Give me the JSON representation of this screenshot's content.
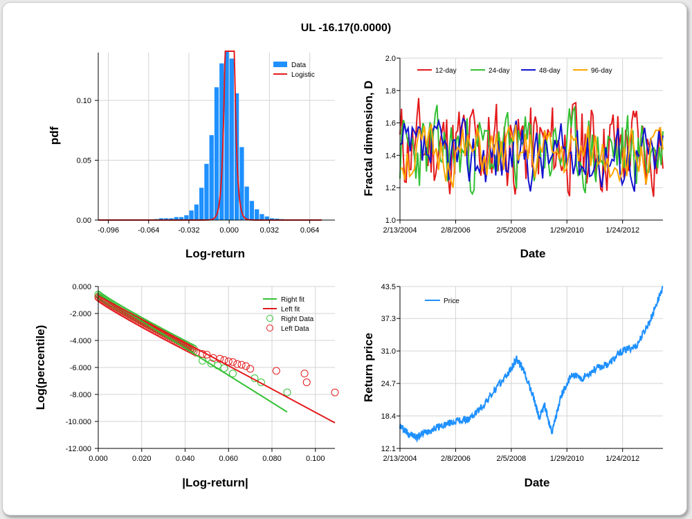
{
  "title": "UL -16.17(0.0000)",
  "colors": {
    "data_bar": "#1e90ff",
    "logistic": "#e31a1c",
    "d12": "#e31a1c",
    "d24": "#33c033",
    "d48": "#1010d0",
    "d96": "#ffa500",
    "right": "#33c033",
    "left": "#e31a1c",
    "price": "#1e90ff",
    "grid": "#d3d3d3"
  },
  "chart_data": [
    {
      "type": "bar",
      "xlabel": "Log-return",
      "ylabel": "pdf",
      "xlim": [
        -0.104,
        0.084
      ],
      "ylim": [
        0,
        0.14
      ],
      "xticks": [
        "-0.096",
        "-0.064",
        "-0.032",
        "0.000",
        "0.032",
        "0.064"
      ],
      "xtick_values": [
        -0.096,
        -0.064,
        -0.032,
        0.0,
        0.032,
        0.064
      ],
      "yticks": [
        "0.00",
        "0.05",
        "0.10"
      ],
      "ytick_values": [
        0,
        0.05,
        0.1
      ],
      "legend": [
        "Data",
        "Logistic"
      ],
      "bin_width": 0.004,
      "bins": {
        "x": [
          -0.094,
          -0.09,
          -0.086,
          -0.082,
          -0.078,
          -0.074,
          -0.07,
          -0.066,
          -0.062,
          -0.058,
          -0.054,
          -0.05,
          -0.046,
          -0.042,
          -0.038,
          -0.034,
          -0.03,
          -0.026,
          -0.022,
          -0.018,
          -0.014,
          -0.01,
          -0.006,
          -0.002,
          0.002,
          0.006,
          0.01,
          0.014,
          0.018,
          0.022,
          0.026,
          0.03,
          0.034,
          0.038,
          0.042,
          0.046,
          0.05,
          0.054,
          0.058,
          0.062,
          0.066,
          0.07,
          0.074,
          0.078
        ],
        "y": [
          0.0002,
          0.0002,
          0.0002,
          0.0002,
          0.0002,
          0.0002,
          0.0002,
          0.0002,
          0.0002,
          0.0008,
          0.0015,
          0.0015,
          0.0015,
          0.0025,
          0.0025,
          0.004,
          0.008,
          0.013,
          0.027,
          0.047,
          0.071,
          0.111,
          0.131,
          0.141,
          0.135,
          0.106,
          0.061,
          0.028,
          0.016,
          0.009,
          0.005,
          0.003,
          0.0015,
          0.0012,
          0.0008,
          0.0006,
          0.0004,
          0.0003,
          0.0003,
          0.0002,
          0.0002,
          0.0001,
          0.0001,
          0.0001
        ]
      },
      "logistic": {
        "mu": 0.0004,
        "s": 0.0018
      }
    },
    {
      "type": "line",
      "xlabel": "Date",
      "ylabel": "Fractal dimension, D",
      "xticks": [
        "2/13/2004",
        "2/8/2006",
        "2/5/2008",
        "1/29/2010",
        "1/24/2012"
      ],
      "xtick_values": [
        0,
        2,
        4,
        6,
        8
      ],
      "xlim": [
        0,
        9.45
      ],
      "ylim": [
        1.0,
        2.0
      ],
      "yticks": [
        "1.0",
        "1.2",
        "1.4",
        "1.6",
        "1.8",
        "2.0"
      ],
      "ytick_values": [
        1.0,
        1.2,
        1.4,
        1.6,
        1.8,
        2.0
      ],
      "legend_placement": "top",
      "series": [
        {
          "name": "12-day",
          "points": 170,
          "seed": 11,
          "level": 1.45,
          "amp": 0.26,
          "min": 1.06,
          "max": 1.88
        },
        {
          "name": "24-day",
          "points": 150,
          "seed": 23,
          "level": 1.42,
          "amp": 0.22,
          "min": 1.04,
          "max": 1.86
        },
        {
          "name": "48-day",
          "points": 130,
          "seed": 37,
          "level": 1.4,
          "amp": 0.18,
          "min": 1.08,
          "max": 1.68
        },
        {
          "name": "96-day",
          "points": 110,
          "seed": 51,
          "level": 1.4,
          "amp": 0.16,
          "min": 1.08,
          "max": 1.82
        }
      ]
    },
    {
      "type": "scatter",
      "xlabel": "|Log-return|",
      "ylabel": "Log(percentile)",
      "xlim": [
        0,
        0.109
      ],
      "ylim": [
        -12,
        0
      ],
      "xticks": [
        "0.000",
        "0.020",
        "0.040",
        "0.060",
        "0.080",
        "0.100"
      ],
      "xtick_values": [
        0,
        0.02,
        0.04,
        0.06,
        0.08,
        0.1
      ],
      "yticks": [
        "0.000",
        "-2.000",
        "-4.000",
        "-6.000",
        "-8.000",
        "-10.000",
        "-12.000"
      ],
      "ytick_values": [
        0,
        -2,
        -4,
        -6,
        -8,
        -10,
        -12
      ],
      "legend": [
        "Right fit",
        "Left fit",
        "Right Data",
        "Left Data"
      ],
      "right_fit": {
        "x": [
          0.0,
          0.087
        ],
        "y": [
          -0.55,
          -9.3
        ]
      },
      "left_fit": {
        "x": [
          0.0,
          0.109
        ],
        "y": [
          -0.7,
          -10.1
        ]
      },
      "right_data": {
        "x": [
          0.048,
          0.052,
          0.055,
          0.058,
          0.062,
          0.072,
          0.075,
          0.087
        ],
        "y": [
          -5.5,
          -5.7,
          -5.85,
          -6.05,
          -6.45,
          -6.8,
          -7.1,
          -7.85
        ]
      },
      "left_data": {
        "x": [
          0.045,
          0.048,
          0.05,
          0.053,
          0.056,
          0.058,
          0.06,
          0.062,
          0.064,
          0.066,
          0.068,
          0.07,
          0.082,
          0.095,
          0.096,
          0.109
        ],
        "y": [
          -4.9,
          -5.0,
          -5.05,
          -5.3,
          -5.35,
          -5.45,
          -5.55,
          -5.6,
          -5.75,
          -5.8,
          -5.9,
          -6.1,
          -6.25,
          -6.45,
          -7.1,
          -7.85
        ]
      },
      "dense_band": {
        "x_start": 0.0,
        "x_end": 0.044,
        "right_y0": -0.6,
        "right_y1": -4.6,
        "left_y0": -0.8,
        "left_y1": -4.8
      }
    },
    {
      "type": "line",
      "xlabel": "Date",
      "ylabel": "Return price",
      "xlim": [
        0,
        9.45
      ],
      "ylim": [
        12.1,
        43.5
      ],
      "xticks": [
        "2/13/2004",
        "2/8/2006",
        "2/5/2008",
        "1/29/2010",
        "1/24/2012"
      ],
      "xtick_values": [
        0,
        2,
        4,
        6,
        8
      ],
      "yticks": [
        "12.1",
        "18.4",
        "24.7",
        "31.0",
        "37.3",
        "43.5"
      ],
      "ytick_values": [
        12.1,
        18.4,
        24.7,
        31.0,
        37.3,
        43.5
      ],
      "legend": [
        "Price"
      ],
      "series": [
        {
          "name": "Price",
          "anchors_x": [
            0,
            0.3,
            0.6,
            1.0,
            1.5,
            2.0,
            2.5,
            3.0,
            3.5,
            4.0,
            4.2,
            4.5,
            4.8,
            5.0,
            5.2,
            5.45,
            5.8,
            6.2,
            6.5,
            7.0,
            7.5,
            8.0,
            8.5,
            9.0,
            9.45
          ],
          "anchors_y": [
            16.5,
            15.0,
            14.3,
            15.5,
            16.5,
            17.4,
            17.8,
            20.5,
            24.0,
            27.5,
            29.5,
            26.5,
            22.0,
            18.0,
            20.5,
            15.0,
            22.5,
            26.5,
            25.5,
            27.5,
            28.5,
            31.0,
            32.0,
            37.0,
            43.5
          ]
        }
      ]
    }
  ]
}
